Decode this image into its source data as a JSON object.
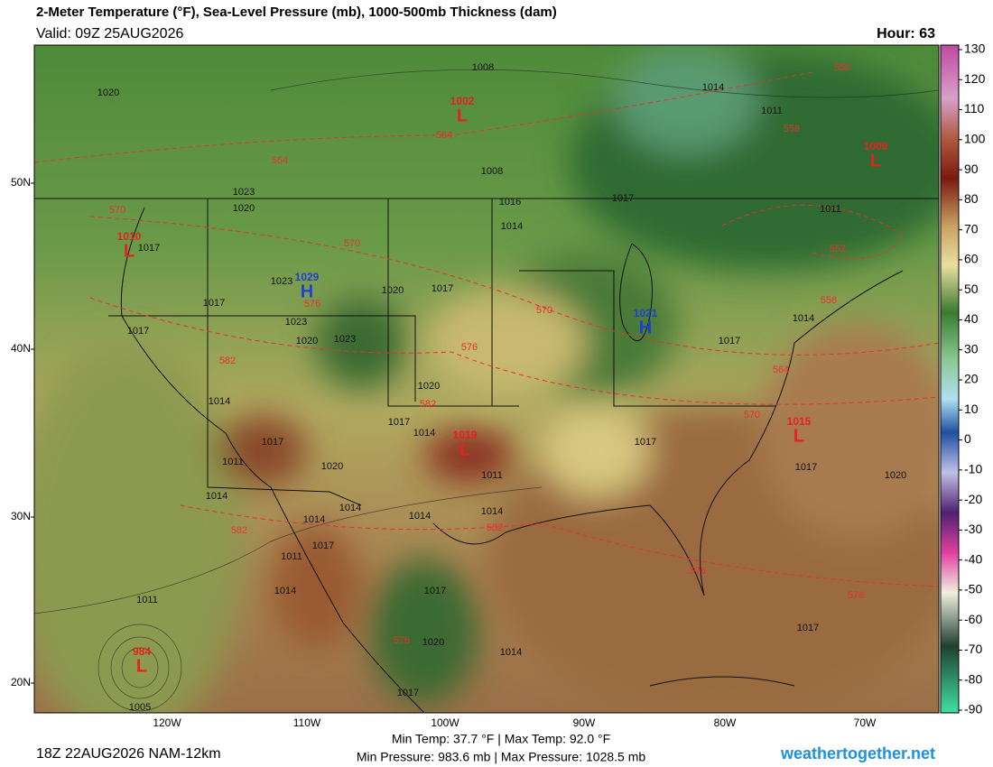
{
  "header": {
    "title": "2-Meter Temperature (°F), Sea-Level Pressure (mb), 1000-500mb Thickness (dam)",
    "valid": "Valid: 09Z 25AUG2026",
    "hour": "Hour: 63"
  },
  "colorbar": {
    "ticks": [
      130,
      120,
      110,
      100,
      90,
      80,
      70,
      60,
      50,
      40,
      30,
      20,
      10,
      0,
      -10,
      -20,
      -30,
      -40,
      -50,
      -60,
      -70,
      -80,
      -90
    ]
  },
  "map": {
    "lat_labels": [
      "50N",
      "40N",
      "30N",
      "20N"
    ],
    "lon_labels": [
      "120W",
      "110W",
      "100W",
      "90W",
      "80W",
      "70W"
    ],
    "pressure_centers": [
      {
        "letter": "L",
        "value": 1002
      },
      {
        "letter": "L",
        "value": 1009
      },
      {
        "letter": "L",
        "value": 1010
      },
      {
        "letter": "H",
        "value": 1029
      },
      {
        "letter": "H",
        "value": 1021
      },
      {
        "letter": "L",
        "value": 1019
      },
      {
        "letter": "L",
        "value": 1015
      },
      {
        "letter": "L",
        "value": 984
      }
    ],
    "isobar_labels": [
      1020,
      1008,
      1014,
      1011,
      1008,
      1017,
      1011,
      1023,
      1020,
      1017,
      1016,
      1014,
      1017,
      1023,
      1020,
      1017,
      1017,
      1023,
      1020,
      1023,
      1017,
      1014,
      1014,
      1020,
      1017,
      1014,
      1017,
      1011,
      1020,
      1011,
      1017,
      1017,
      1020,
      1014,
      1014,
      1014,
      1014,
      1014,
      1017,
      1011,
      1014,
      1017,
      1011,
      1020,
      1014,
      1017,
      1017,
      1005
    ],
    "thickness_labels": [
      564,
      570,
      570,
      570,
      576,
      576,
      582,
      582,
      570,
      564,
      582,
      582,
      576,
      576,
      576,
      558,
      558,
      552,
      558,
      564
    ]
  },
  "footer": {
    "run": "18Z 22AUG2026 NAM-12km",
    "temps": "Min Temp:  37.7 °F | Max Temp:  92.0 °F",
    "pressures": "Min Pressure: 983.6 mb | Max Pressure: 1028.5 mb",
    "site": "weathertogether.net"
  }
}
